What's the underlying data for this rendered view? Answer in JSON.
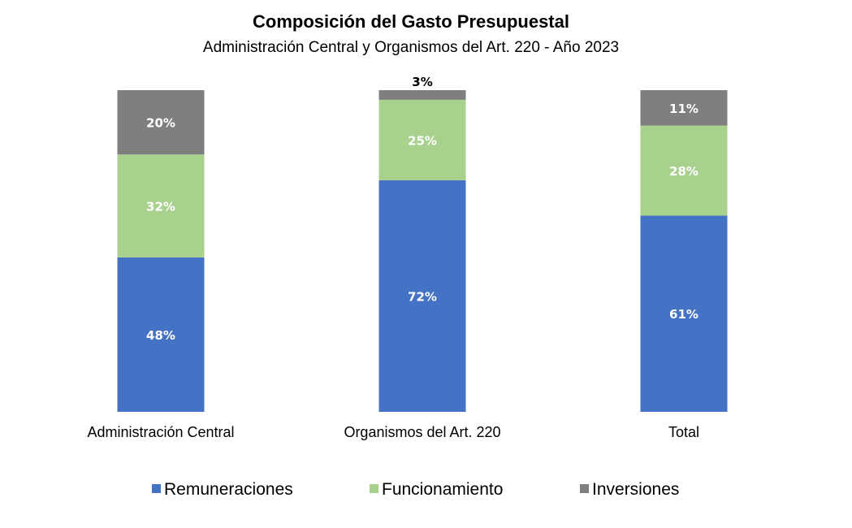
{
  "chart_data": {
    "type": "bar",
    "stacked": true,
    "title": "Composición del Gasto Presupuestal",
    "subtitle": "Administración Central y Organismos del Art. 220 - Año 2023",
    "categories": [
      "Administración Central",
      "Organismos del Art. 220",
      "Total"
    ],
    "series": [
      {
        "name": "Remuneraciones",
        "color": "#4472C4",
        "values": [
          48,
          72,
          61
        ]
      },
      {
        "name": "Funcionamiento",
        "color": "#A9D18E",
        "values": [
          32,
          25,
          28
        ]
      },
      {
        "name": "Inversiones",
        "color": "#7F7F7F",
        "values": [
          20,
          3,
          11
        ]
      }
    ],
    "value_suffix": "%",
    "ylim": [
      0,
      100
    ],
    "grid": false,
    "legend_position": "bottom",
    "xlabel": "",
    "ylabel": ""
  }
}
